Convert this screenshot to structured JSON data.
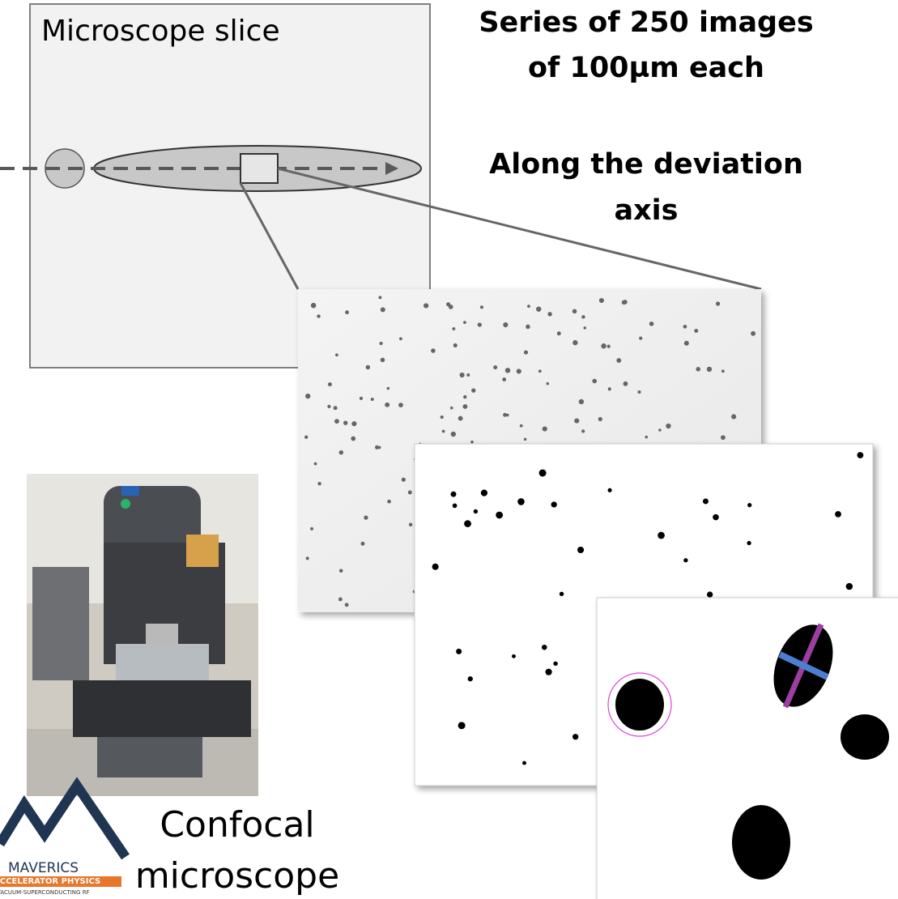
{
  "slice": {
    "label": "Microscope slice"
  },
  "series_note": {
    "lines": [
      "Series of 250 images",
      "of 100µm each"
    ]
  },
  "axis_note": {
    "lines": [
      "Along the deviation",
      "axis"
    ]
  },
  "microscope": {
    "lines": [
      "Confocal",
      "microscope"
    ]
  },
  "logo": {
    "name": "MAVERICS",
    "tagline": "ACCELERATOR PHYSICS",
    "subline": "VACUUM-SUPERCONDUCTING RF"
  }
}
